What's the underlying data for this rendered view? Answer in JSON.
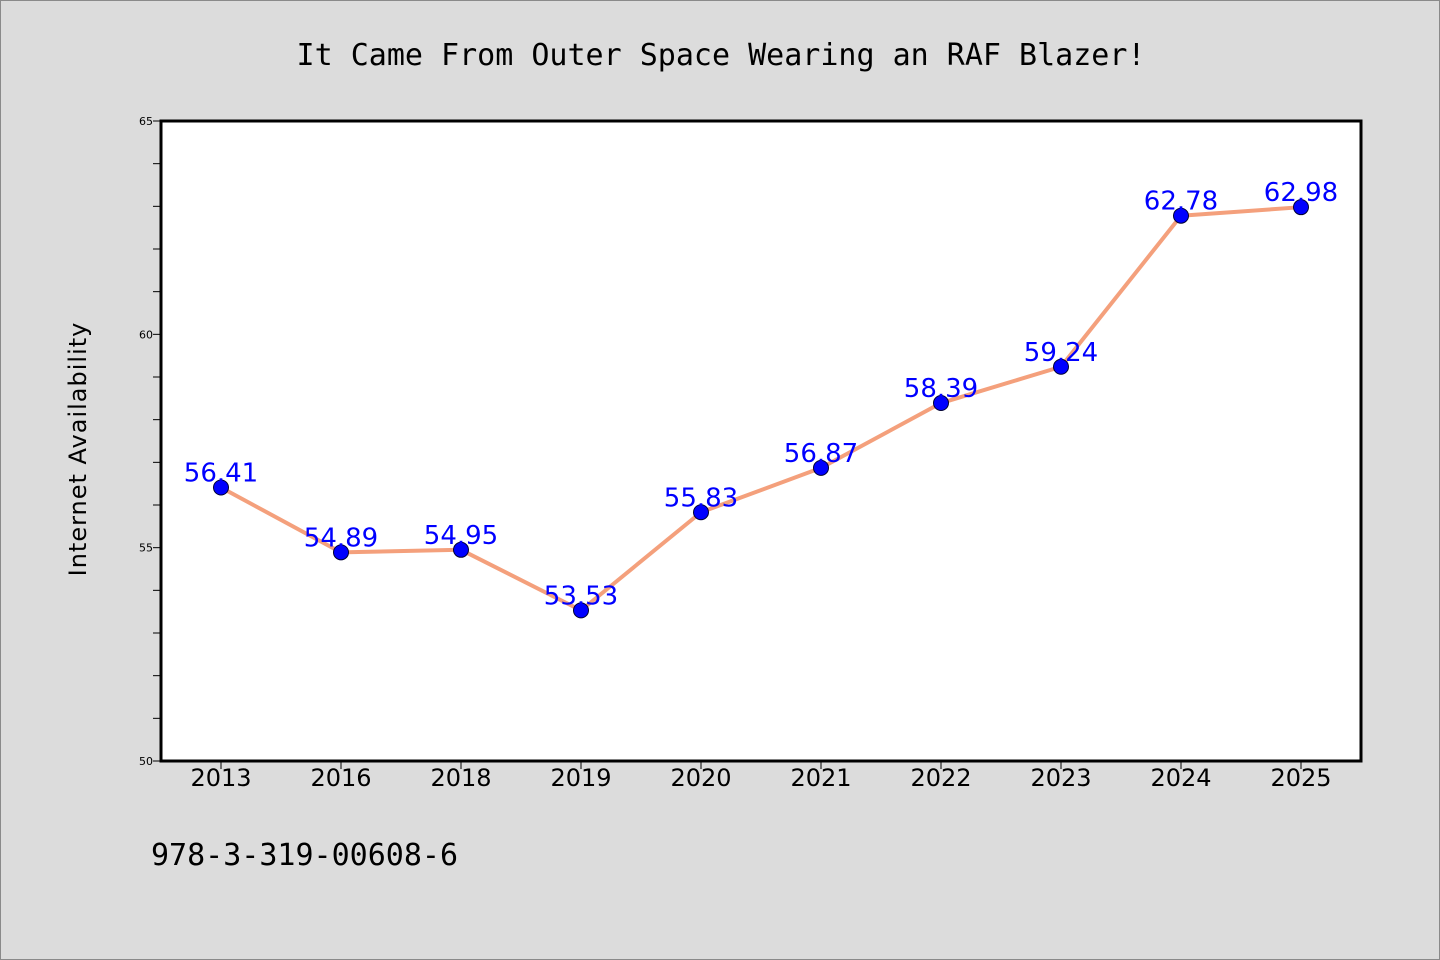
{
  "chart_data": {
    "type": "line",
    "title": "It Came From Outer Space Wearing an RAF Blazer!",
    "xlabel": "",
    "ylabel": "Internet Availability",
    "categories": [
      "2013",
      "2016",
      "2018",
      "2019",
      "2020",
      "2021",
      "2022",
      "2023",
      "2024",
      "2025"
    ],
    "values": [
      56.41,
      54.89,
      54.95,
      53.53,
      55.83,
      56.87,
      58.39,
      59.24,
      62.78,
      62.98
    ],
    "data_labels": [
      "56.41",
      "54.89",
      "54.95",
      "53.53",
      "55.83",
      "56.87",
      "58.39",
      "59.24",
      "62.78",
      "62.98"
    ],
    "ylim": [
      50,
      65
    ],
    "yticks": [
      "50",
      "55",
      "60",
      "65"
    ],
    "grid": false,
    "line_color": "#f4a07c",
    "marker_color": "#0000ff",
    "label_color": "#0000ff"
  },
  "footer": {
    "isbn": "978-3-319-00608-6"
  }
}
